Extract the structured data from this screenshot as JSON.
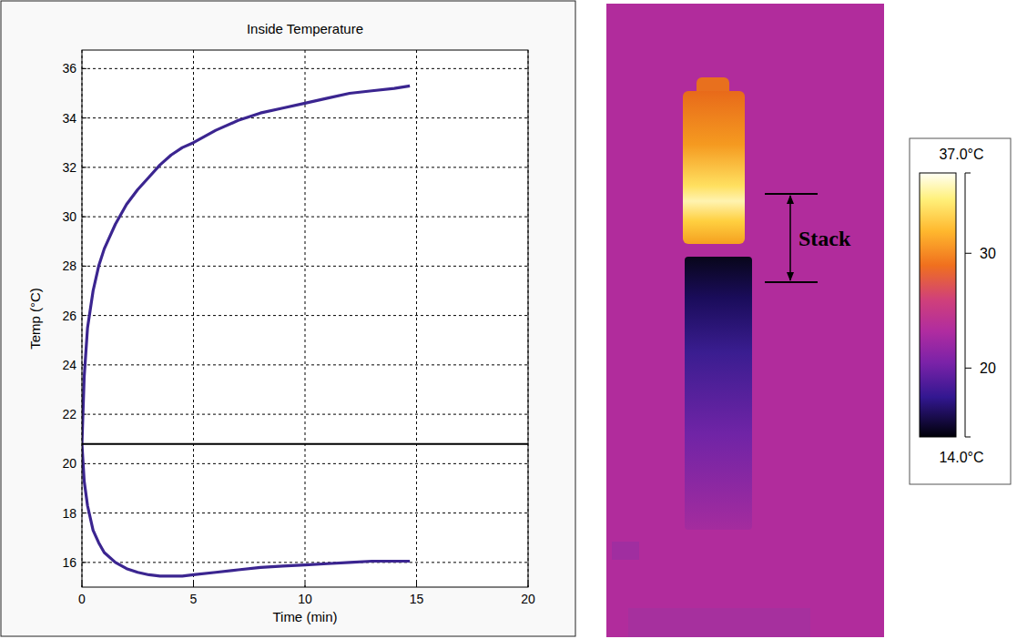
{
  "chart_data": [
    {
      "type": "line",
      "title": "Inside Temperature",
      "x_label": "Time (min)",
      "y_label": "Temp (°C)",
      "xlim": [
        0,
        20
      ],
      "xticks": [
        0,
        5,
        10,
        15,
        20
      ],
      "ylim": [
        15,
        36.75
      ],
      "yticks": [
        16,
        18,
        20,
        22,
        24,
        26,
        28,
        30,
        32,
        34,
        36
      ],
      "grid": true,
      "series": [
        {
          "color": "#3b2590",
          "x": [
            0,
            0.1,
            0.25,
            0.5,
            0.75,
            1,
            1.5,
            2,
            2.5,
            3,
            3.5,
            4,
            4.5,
            5,
            6,
            7,
            8,
            9,
            10,
            11,
            12,
            13,
            14,
            14.7
          ],
          "values": [
            20.8,
            23.5,
            25.5,
            27.0,
            28.0,
            28.7,
            29.7,
            30.5,
            31.1,
            31.6,
            32.1,
            32.5,
            32.8,
            33.0,
            33.5,
            33.9,
            34.2,
            34.4,
            34.6,
            34.8,
            35.0,
            35.1,
            35.2,
            35.3
          ]
        },
        {
          "color": "#3b2590",
          "x": [
            0,
            0.1,
            0.25,
            0.5,
            0.75,
            1,
            1.5,
            2,
            2.5,
            3,
            3.5,
            4,
            4.5,
            5,
            6,
            7,
            8,
            9,
            10,
            11,
            12,
            13,
            14,
            14.7
          ],
          "values": [
            20.8,
            19.3,
            18.3,
            17.3,
            16.8,
            16.4,
            16.0,
            15.75,
            15.6,
            15.5,
            15.45,
            15.45,
            15.45,
            15.5,
            15.6,
            15.7,
            15.8,
            15.85,
            15.9,
            15.95,
            16.0,
            16.05,
            16.05,
            16.05
          ]
        },
        {
          "color": "#000000",
          "x": [
            0,
            20
          ],
          "values": [
            20.8,
            20.8
          ]
        }
      ]
    }
  ],
  "thermal_image": {
    "annotation": "Stack",
    "colorbar": {
      "range": [
        14,
        37
      ],
      "ticks": [
        20,
        30
      ],
      "max_label": "37.0°C",
      "min_label": "14.0°C"
    }
  }
}
